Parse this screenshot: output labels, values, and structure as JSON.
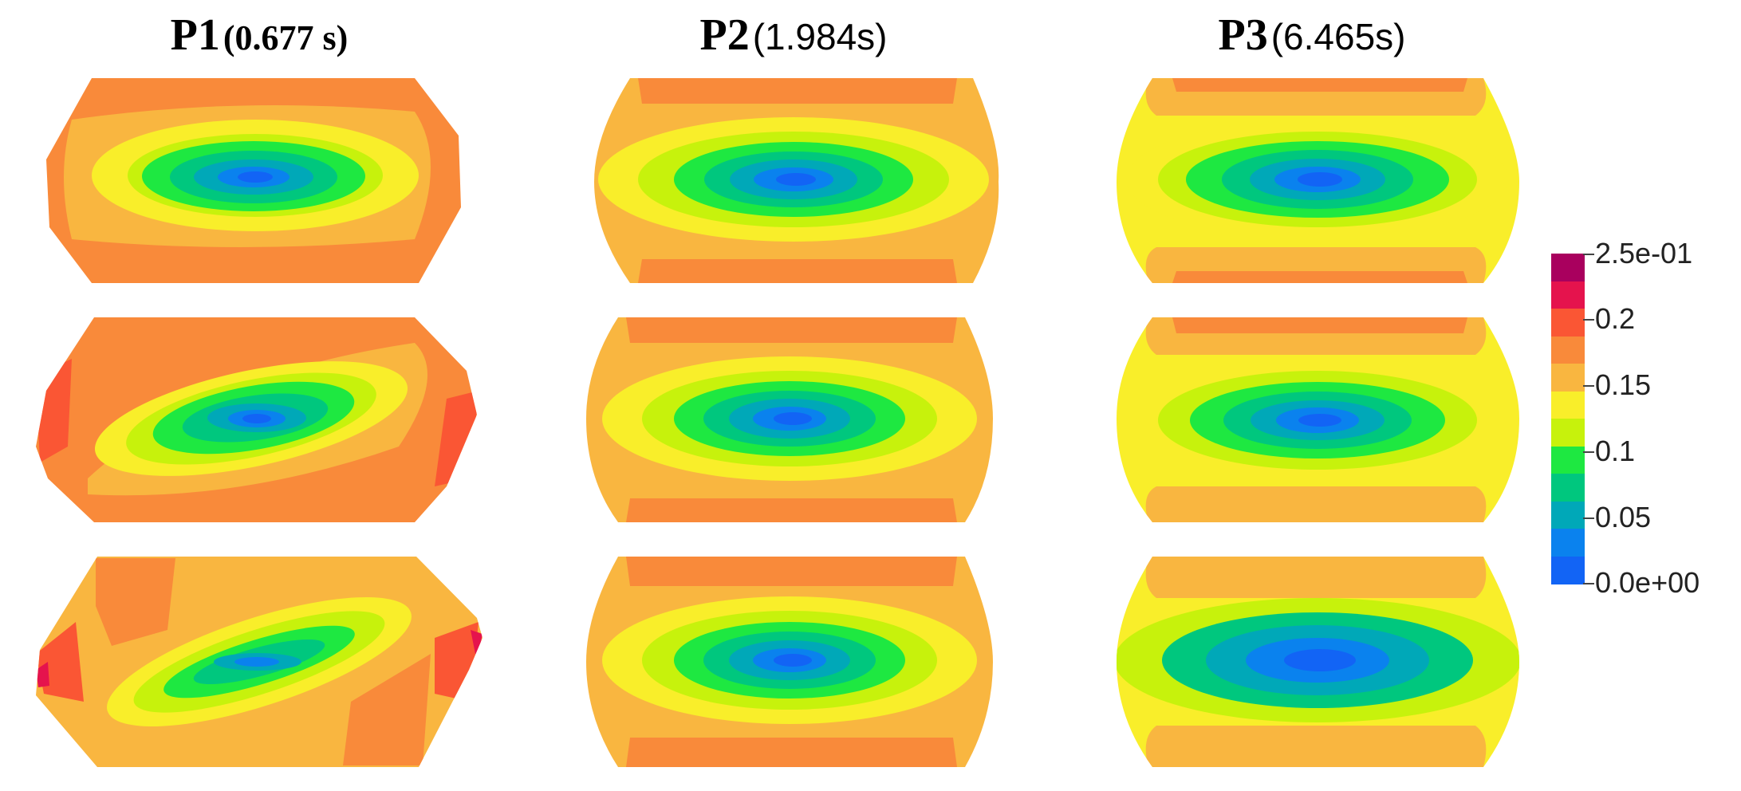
{
  "columns": [
    {
      "id": "P1",
      "label": "P1",
      "time": "(0.677 s)",
      "style": "serif"
    },
    {
      "id": "P2",
      "label": "P2",
      "time": "(1.984s)",
      "style": "sans"
    },
    {
      "id": "P3",
      "label": "P3",
      "time": "(6.465s)",
      "style": "sans"
    }
  ],
  "colorbar": {
    "labels": [
      "2.5e-01",
      "0.2",
      "0.15",
      "0.1",
      "0.05",
      "0.0e+00"
    ],
    "colors": [
      "#a9005e",
      "#e5134d",
      "#fa5634",
      "#f98a3a",
      "#f9b640",
      "#f9ee2a",
      "#c7f20c",
      "#1ee841",
      "#00c77e",
      "#00a8b8",
      "#0a82ee",
      "#1264f5"
    ]
  },
  "palette": {
    "blue_dark": "#1264f5",
    "blue": "#0a82ee",
    "teal": "#00a8b8",
    "teal_green": "#00c77e",
    "green": "#1ee841",
    "lime": "#c7f20c",
    "yellow": "#f9ee2a",
    "light_orange": "#f9b640",
    "orange": "#f98a3a",
    "red_orange": "#fa5634",
    "red": "#e5134d",
    "magenta": "#a9005e"
  }
}
